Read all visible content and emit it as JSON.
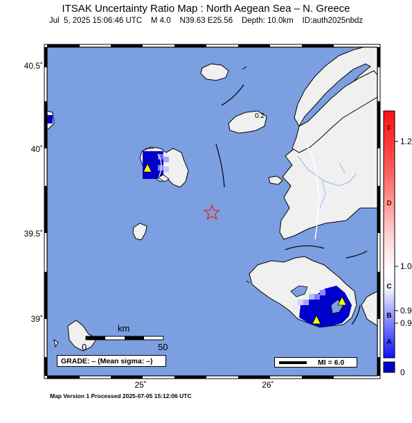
{
  "title": "ITSAK Uncertainty Ratio Map : North Aegean Sea – N. Greece",
  "subtitle": "Jul  5, 2025 15:06:46 UTC    M 4.0    N39.63 E25.56    Depth: 10.0km    ID:auth2025nbdz",
  "map": {
    "lat_ticks": [
      "40.5˚",
      "40˚",
      "39.5˚",
      "39˚"
    ],
    "lon_ticks": [
      "25˚",
      "26˚"
    ],
    "contour_label": "0.2",
    "epicenter": {
      "lat": 39.63,
      "lon": 25.56
    },
    "colors": {
      "sea": "#7b9fe0",
      "land": "#f0f0f0",
      "high_uncertainty": "#0000cc",
      "epicenter": "#e8222a",
      "station": "#ffff00"
    }
  },
  "colorbar": {
    "letters": [
      "F",
      "D",
      "C",
      "B",
      "A"
    ],
    "values": [
      "1.2",
      "1.0",
      "0.9",
      "0.9",
      "0"
    ]
  },
  "scale": {
    "title": "km",
    "start": "0",
    "end": "50"
  },
  "grade_box": "GRADE: – (Mean sigma: –)",
  "legend": {
    "label": "MI = 6.0"
  },
  "footer": "Map Version 1 Processed 2025-07-05 15:12:06 UTC"
}
